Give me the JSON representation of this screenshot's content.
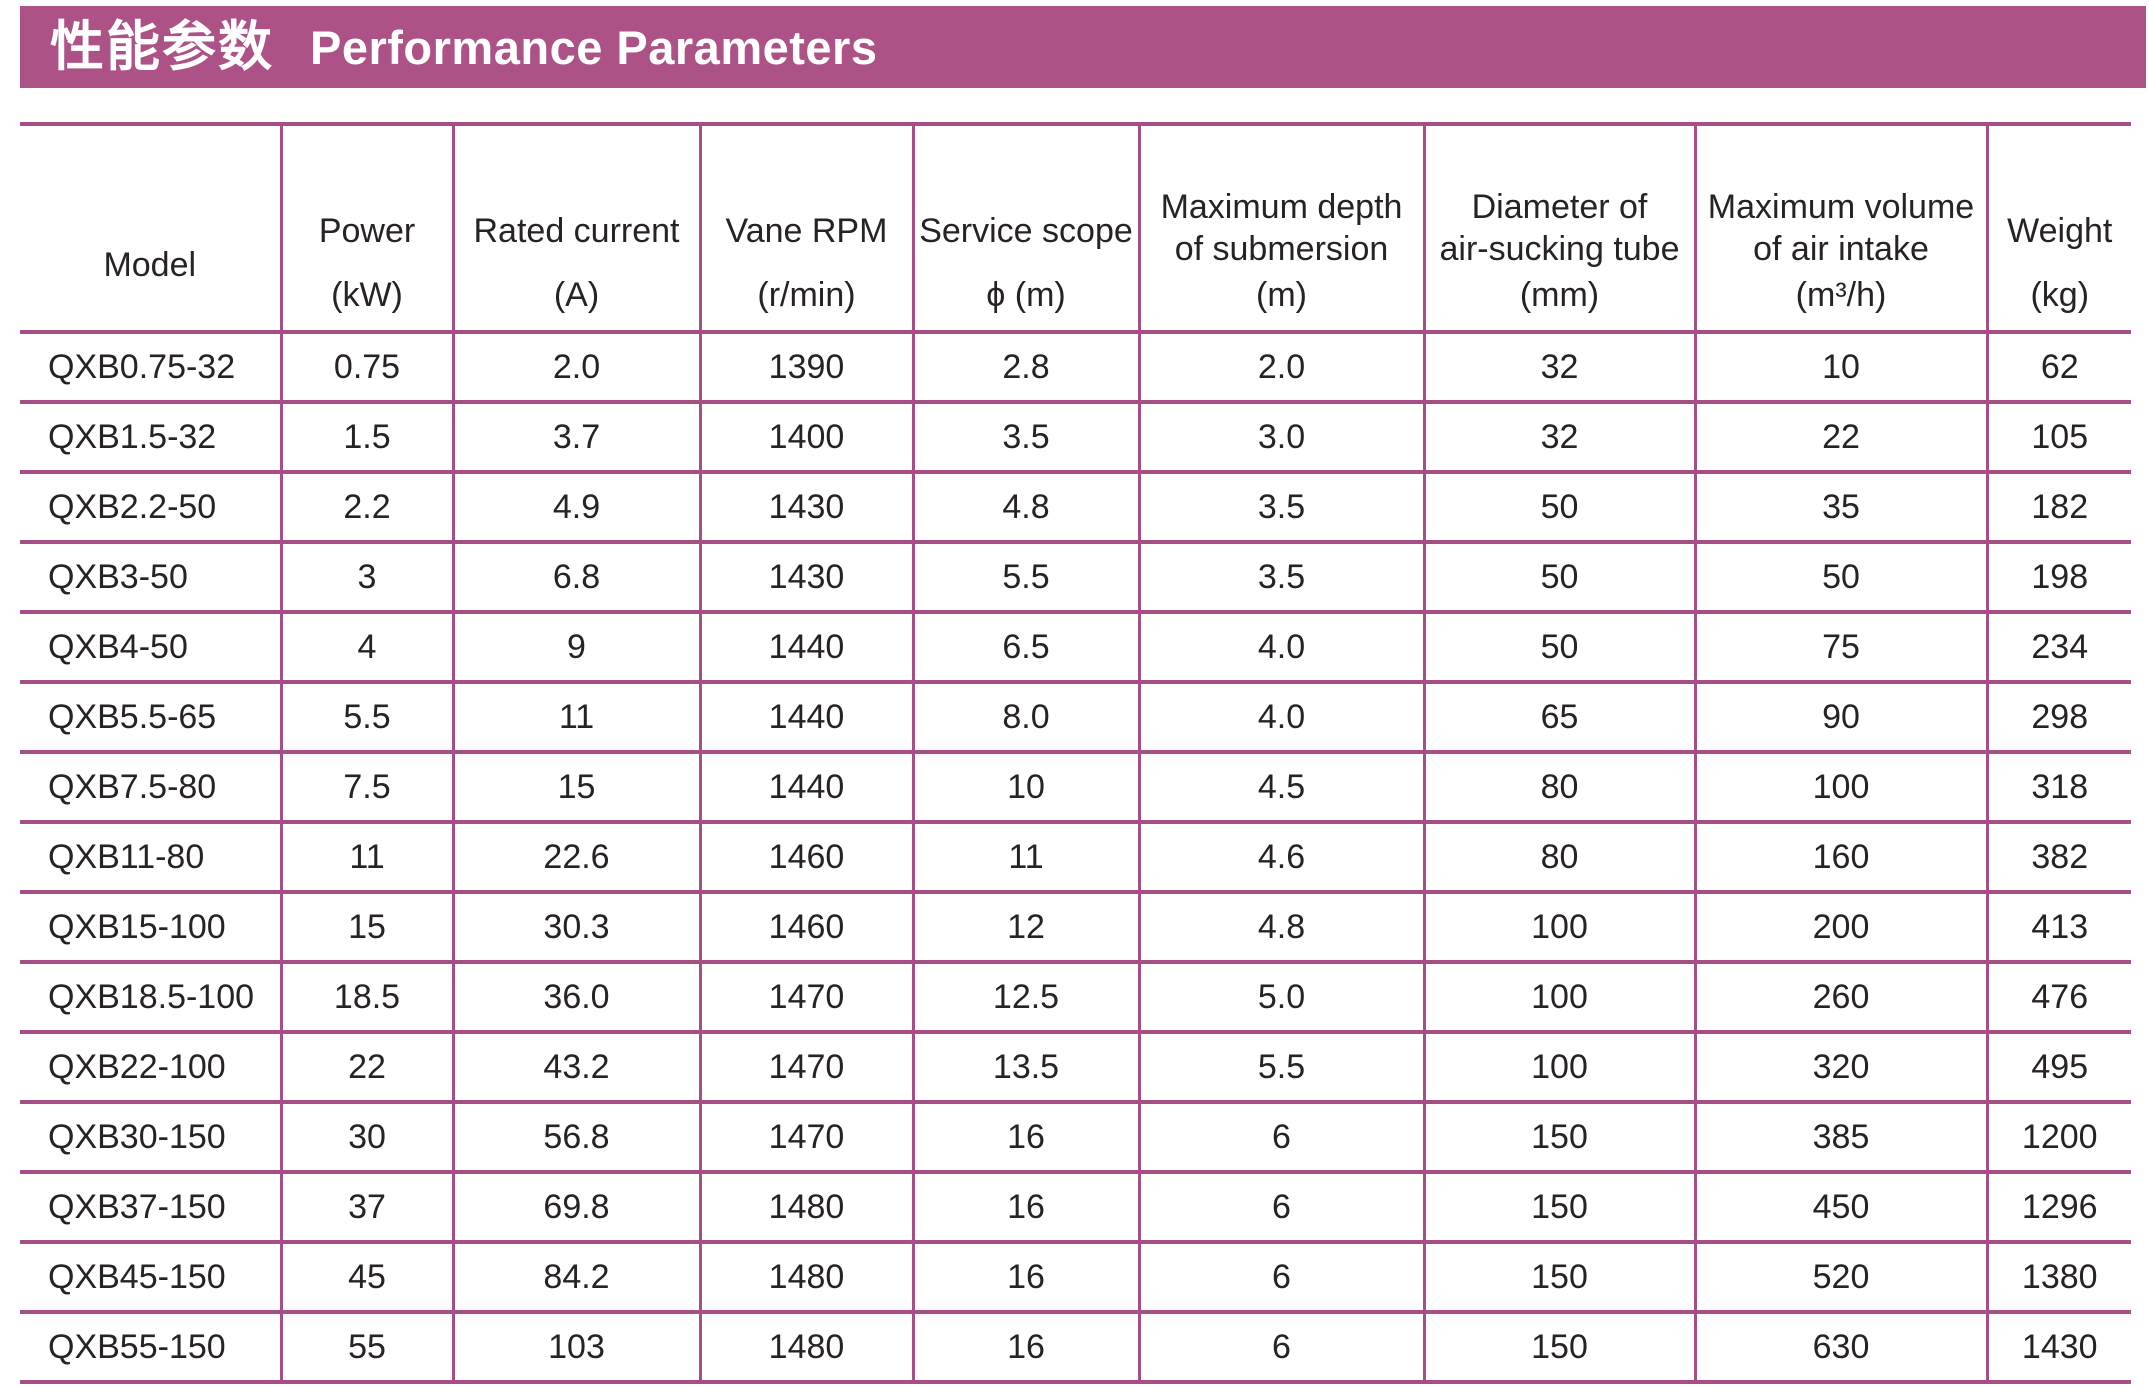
{
  "banner": {
    "title_zh": "性能参数",
    "title_en": "Performance Parameters"
  },
  "colors": {
    "banner_bg": "#ad5286",
    "grid_line": "#a84e87",
    "banner_text": "#ffffff",
    "cell_text": "#272223"
  },
  "table": {
    "columns": [
      {
        "label_lines": [
          "Model"
        ],
        "unit": ""
      },
      {
        "label_lines": [
          "Power"
        ],
        "unit": "(kW)"
      },
      {
        "label_lines": [
          "Rated current"
        ],
        "unit": "(A)"
      },
      {
        "label_lines": [
          "Vane RPM"
        ],
        "unit": "(r/min)"
      },
      {
        "label_lines": [
          "Service scope"
        ],
        "unit": "ϕ (m)"
      },
      {
        "label_lines": [
          "Maximum depth",
          "of submersion"
        ],
        "unit": "(m)"
      },
      {
        "label_lines": [
          "Diameter of",
          "air-sucking tube"
        ],
        "unit": "(mm)"
      },
      {
        "label_lines": [
          "Maximum volume",
          "of air intake"
        ],
        "unit": "(m³/h)"
      },
      {
        "label_lines": [
          "Weight"
        ],
        "unit": "(kg)"
      }
    ],
    "rows": [
      [
        "QXB0.75-32",
        "0.75",
        "2.0",
        "1390",
        "2.8",
        "2.0",
        "32",
        "10",
        "62"
      ],
      [
        "QXB1.5-32",
        "1.5",
        "3.7",
        "1400",
        "3.5",
        "3.0",
        "32",
        "22",
        "105"
      ],
      [
        "QXB2.2-50",
        "2.2",
        "4.9",
        "1430",
        "4.8",
        "3.5",
        "50",
        "35",
        "182"
      ],
      [
        "QXB3-50",
        "3",
        "6.8",
        "1430",
        "5.5",
        "3.5",
        "50",
        "50",
        "198"
      ],
      [
        "QXB4-50",
        "4",
        "9",
        "1440",
        "6.5",
        "4.0",
        "50",
        "75",
        "234"
      ],
      [
        "QXB5.5-65",
        "5.5",
        "11",
        "1440",
        "8.0",
        "4.0",
        "65",
        "90",
        "298"
      ],
      [
        "QXB7.5-80",
        "7.5",
        "15",
        "1440",
        "10",
        "4.5",
        "80",
        "100",
        "318"
      ],
      [
        "QXB11-80",
        "11",
        "22.6",
        "1460",
        "11",
        "4.6",
        "80",
        "160",
        "382"
      ],
      [
        "QXB15-100",
        "15",
        "30.3",
        "1460",
        "12",
        "4.8",
        "100",
        "200",
        "413"
      ],
      [
        "QXB18.5-100",
        "18.5",
        "36.0",
        "1470",
        "12.5",
        "5.0",
        "100",
        "260",
        "476"
      ],
      [
        "QXB22-100",
        "22",
        "43.2",
        "1470",
        "13.5",
        "5.5",
        "100",
        "320",
        "495"
      ],
      [
        "QXB30-150",
        "30",
        "56.8",
        "1470",
        "16",
        "6",
        "150",
        "385",
        "1200"
      ],
      [
        "QXB37-150",
        "37",
        "69.8",
        "1480",
        "16",
        "6",
        "150",
        "450",
        "1296"
      ],
      [
        "QXB45-150",
        "45",
        "84.2",
        "1480",
        "16",
        "6",
        "150",
        "520",
        "1380"
      ],
      [
        "QXB55-150",
        "55",
        "103",
        "1480",
        "16",
        "6",
        "150",
        "630",
        "1430"
      ]
    ]
  }
}
